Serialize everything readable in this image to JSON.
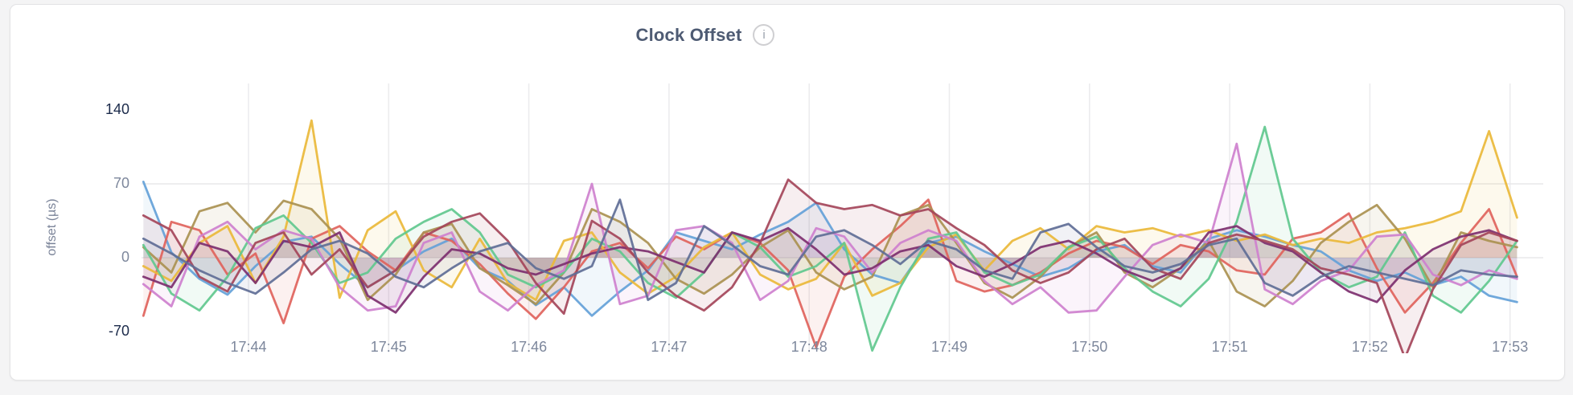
{
  "card": {
    "name": "clock-offset-chart-card"
  },
  "header": {
    "title": "Clock Offset",
    "info_icon_glyph": "i"
  },
  "colors": {
    "page_background": "#f4f4f5",
    "card_background": "#ffffff",
    "grid_vertical": "#ececee",
    "grid_horizontal": "#e8e8ea",
    "title_text": "#4e5b73",
    "tick_text": "#7d879c",
    "tick_text_strong": "#1b2a4a"
  },
  "chart_data": {
    "type": "line",
    "title": "Clock Offset",
    "ylabel": "offset (µs)",
    "xlabel": "",
    "ylim": [
      -70,
      140
    ],
    "y_ticks": [
      {
        "label": "140",
        "value": 140,
        "strong": true
      },
      {
        "label": "70",
        "value": 70,
        "strong": false
      },
      {
        "label": "0",
        "value": 0,
        "strong": false
      },
      {
        "label": "-70",
        "value": -70,
        "strong": true
      }
    ],
    "grid_y_values": [
      70,
      0
    ],
    "x_ticks": [
      {
        "label": "17:44",
        "minute": 44
      },
      {
        "label": "17:45",
        "minute": 45
      },
      {
        "label": "17:46",
        "minute": 46
      },
      {
        "label": "17:47",
        "minute": 47
      },
      {
        "label": "17:48",
        "minute": 48
      },
      {
        "label": "17:49",
        "minute": 49
      },
      {
        "label": "17:50",
        "minute": 50
      },
      {
        "label": "17:51",
        "minute": 51
      },
      {
        "label": "17:52",
        "minute": 52
      },
      {
        "label": "17:53",
        "minute": 53
      }
    ],
    "x_start_min": 43.25,
    "x_step_min": 0.2,
    "legend_position": "none",
    "grid": true,
    "series": [
      {
        "name": "blue",
        "color": "#64A1D8",
        "values": [
          72,
          5,
          -20,
          -35,
          -8,
          15,
          20,
          -6,
          -28,
          -12,
          6,
          18,
          -10,
          -22,
          -45,
          -28,
          -55,
          -32,
          -12,
          24,
          16,
          8,
          22,
          34,
          52,
          8,
          -16,
          -24,
          14,
          20,
          6,
          -6,
          -18,
          -10,
          6,
          12,
          -8,
          -14,
          18,
          26,
          20,
          12,
          6,
          -12,
          -22,
          -14,
          -26,
          -18,
          -36,
          -42
        ]
      },
      {
        "name": "salmon",
        "color": "#E0635C",
        "values": [
          -55,
          34,
          26,
          -16,
          4,
          -62,
          18,
          30,
          6,
          -12,
          24,
          16,
          -6,
          -34,
          -58,
          -28,
          6,
          14,
          -10,
          20,
          8,
          24,
          14,
          -12,
          -85,
          -18,
          8,
          30,
          55,
          -22,
          -32,
          -26,
          -14,
          4,
          16,
          10,
          -6,
          12,
          6,
          -12,
          -16,
          18,
          24,
          42,
          -10,
          -52,
          -24,
          14,
          46,
          -18
        ]
      },
      {
        "name": "gold",
        "color": "#EAB839",
        "values": [
          -8,
          -22,
          14,
          30,
          -24,
          20,
          130,
          -38,
          26,
          44,
          -12,
          -28,
          18,
          -24,
          -40,
          16,
          24,
          -14,
          -34,
          -18,
          10,
          24,
          -16,
          -30,
          -20,
          14,
          -36,
          -24,
          10,
          22,
          -12,
          16,
          28,
          8,
          30,
          24,
          28,
          20,
          26,
          16,
          22,
          12,
          18,
          14,
          24,
          28,
          34,
          44,
          120,
          38
        ]
      },
      {
        "name": "olive",
        "color": "#AA9151",
        "values": [
          10,
          -14,
          44,
          52,
          24,
          54,
          46,
          18,
          -40,
          -16,
          24,
          32,
          -10,
          -26,
          -44,
          -14,
          46,
          34,
          14,
          -20,
          -34,
          -16,
          10,
          26,
          -14,
          -30,
          -18,
          40,
          50,
          14,
          -24,
          -38,
          -18,
          10,
          24,
          -14,
          -28,
          -10,
          16,
          -32,
          -46,
          -22,
          14,
          34,
          50,
          18,
          -28,
          24,
          16,
          10
        ]
      },
      {
        "name": "mint",
        "color": "#61C88E",
        "values": [
          12,
          -34,
          -50,
          -18,
          28,
          40,
          14,
          -24,
          -14,
          18,
          34,
          46,
          24,
          -16,
          -28,
          -14,
          18,
          6,
          -24,
          -38,
          -14,
          24,
          10,
          -18,
          -8,
          14,
          -88,
          -28,
          18,
          24,
          -14,
          -26,
          -16,
          10,
          20,
          -10,
          -32,
          -46,
          -20,
          34,
          124,
          18,
          -14,
          -28,
          -18,
          24,
          -36,
          -52,
          -22,
          16
        ]
      },
      {
        "name": "orchid",
        "color": "#CE80CE",
        "values": [
          -25,
          -46,
          20,
          34,
          8,
          26,
          18,
          -28,
          -50,
          -46,
          14,
          24,
          -32,
          -50,
          -26,
          -12,
          70,
          -44,
          -36,
          26,
          30,
          14,
          -40,
          -22,
          28,
          20,
          -14,
          14,
          26,
          16,
          -22,
          -44,
          -28,
          -52,
          -50,
          -18,
          12,
          22,
          14,
          108,
          -30,
          -44,
          -22,
          -12,
          20,
          22,
          -16,
          -26,
          -12,
          -20
        ]
      },
      {
        "name": "plum",
        "color": "#7D2F6F",
        "values": [
          -18,
          -28,
          14,
          6,
          -24,
          16,
          10,
          24,
          -36,
          -52,
          -18,
          8,
          4,
          -10,
          -16,
          -6,
          4,
          10,
          6,
          -4,
          -14,
          24,
          16,
          28,
          8,
          -16,
          -10,
          6,
          12,
          -8,
          -18,
          -6,
          10,
          16,
          4,
          -12,
          -22,
          -10,
          24,
          30,
          14,
          6,
          -14,
          -32,
          -42,
          -12,
          8,
          20,
          26,
          16
        ]
      },
      {
        "name": "maroon",
        "color": "#A4455A",
        "values": [
          40,
          26,
          -18,
          -32,
          14,
          24,
          -16,
          8,
          -28,
          -12,
          20,
          34,
          42,
          16,
          -24,
          -53,
          35,
          18,
          -14,
          -36,
          -50,
          -28,
          14,
          74,
          52,
          46,
          50,
          40,
          46,
          28,
          12,
          -12,
          -24,
          -14,
          8,
          18,
          -10,
          -20,
          14,
          22,
          16,
          8,
          -10,
          -16,
          -24,
          -95,
          -30,
          12,
          24,
          16
        ]
      },
      {
        "name": "slate",
        "color": "#5F6E96",
        "values": [
          18,
          4,
          -12,
          -24,
          -34,
          -14,
          8,
          16,
          4,
          -18,
          -28,
          -10,
          6,
          14,
          -10,
          -20,
          -8,
          55,
          -40,
          -24,
          30,
          12,
          -8,
          -16,
          20,
          26,
          12,
          -6,
          16,
          8,
          -12,
          -20,
          24,
          32,
          10,
          -8,
          -14,
          -6,
          12,
          18,
          -24,
          -36,
          -18,
          -8,
          -14,
          -20,
          -26,
          -12,
          -16,
          -18
        ]
      }
    ]
  }
}
